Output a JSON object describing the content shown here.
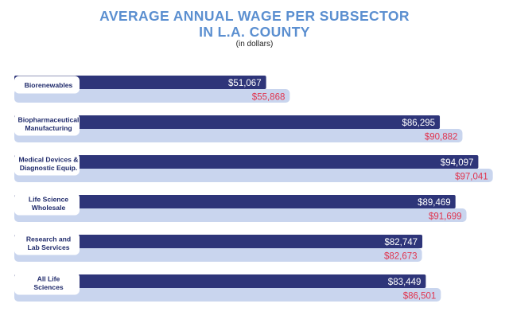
{
  "header": {
    "title_line1": "AVERAGE ANNUAL WAGE PER SUBSECTOR",
    "title_line2": "IN L.A. COUNTY",
    "subtitle": "(in dollars)"
  },
  "colors": {
    "dark_bar": "#2e3579",
    "light_bar": "#c9d5ee",
    "red_value": "#e0354f",
    "title": "#5b8fd0"
  },
  "chart_data": {
    "type": "bar",
    "orientation": "horizontal",
    "title": "AVERAGE ANNUAL WAGE PER SUBSECTOR IN L.A. COUNTY",
    "subtitle": "(in dollars)",
    "categories": [
      [
        "Biorenewables"
      ],
      [
        "Biopharmaceutical",
        "Manufacturing"
      ],
      [
        "Medical Devices &",
        "Diagnostic Equip."
      ],
      [
        "Life Science",
        "Wholesale"
      ],
      [
        "Research and",
        "Lab Services"
      ],
      [
        "All Life",
        "Sciences"
      ]
    ],
    "series": [
      {
        "values": [
          51067,
          86295,
          94097,
          89469,
          82747,
          83449
        ],
        "labels": [
          "$51,067",
          "$86,295",
          "$94,097",
          "$89,469",
          "$82,747",
          "$83,449"
        ]
      },
      {
        "values": [
          55868,
          90882,
          97041,
          91699,
          82673,
          86501
        ],
        "labels": [
          "$55,868",
          "$90,882",
          "$97,041",
          "$91,699",
          "$82,673",
          "$86,501"
        ]
      }
    ]
  }
}
